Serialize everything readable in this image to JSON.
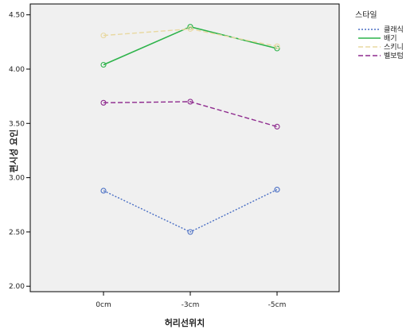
{
  "chart_data": {
    "type": "line",
    "title": "",
    "xlabel": "허리선위치",
    "ylabel": "편시성 요인",
    "categories": [
      "0cm",
      "-3cm",
      "-5cm"
    ],
    "ylim": [
      1.95,
      4.6
    ],
    "yticks": [
      2.0,
      2.5,
      3.0,
      3.5,
      4.0,
      4.5
    ],
    "ytick_labels": [
      "2.00",
      "2.50",
      "3.00",
      "3.50",
      "4.00",
      "4.50"
    ],
    "grid": false,
    "legend": {
      "title": "스타일",
      "position": "right"
    },
    "series": [
      {
        "name": "클래식",
        "color": "#4a6fc4",
        "dash": "dotted",
        "values": [
          2.88,
          2.5,
          2.89
        ]
      },
      {
        "name": "배기",
        "color": "#2db34a",
        "dash": "solid",
        "values": [
          4.04,
          4.39,
          4.19
        ]
      },
      {
        "name": "스키니",
        "color": "#e8d8a0",
        "dash": "dashed",
        "values": [
          4.31,
          4.37,
          4.21
        ]
      },
      {
        "name": "벨보텀",
        "color": "#8e2a8e",
        "dash": "dashed",
        "values": [
          3.69,
          3.7,
          3.47
        ]
      }
    ]
  }
}
